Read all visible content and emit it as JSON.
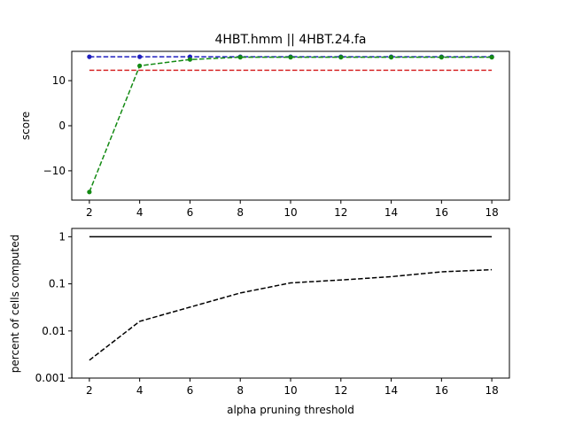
{
  "chart_data": [
    {
      "type": "line",
      "title": "4HBT.hmm || 4HBT.24.fa",
      "xlabel": "",
      "ylabel": "score",
      "x": [
        2,
        4,
        6,
        8,
        10,
        12,
        14,
        16,
        18
      ],
      "xticks": [
        "2",
        "4",
        "6",
        "8",
        "10",
        "12",
        "14",
        "16",
        "18"
      ],
      "xlim": [
        1.3,
        18.7
      ],
      "ylim": [
        -16.5,
        16.5
      ],
      "yticks": [
        {
          "value": -10,
          "label": "−10"
        },
        {
          "value": 0,
          "label": "0"
        },
        {
          "value": 10,
          "label": "10"
        }
      ],
      "grid": false,
      "series": [
        {
          "color": "#d62728",
          "dash": "dashed",
          "marker": "none",
          "values": [
            12.3,
            12.3,
            12.3,
            12.3,
            12.3,
            12.3,
            12.3,
            12.3,
            12.3
          ]
        },
        {
          "color": "#1f1fbf",
          "dash": "dashed",
          "marker": "dot",
          "values": [
            15.3,
            15.3,
            15.3,
            15.3,
            15.3,
            15.3,
            15.3,
            15.3,
            15.3
          ]
        },
        {
          "color": "#138a13",
          "dash": "dashed",
          "marker": "dot",
          "values": [
            -14.7,
            13.3,
            14.7,
            15.2,
            15.2,
            15.2,
            15.2,
            15.2,
            15.2
          ]
        }
      ]
    },
    {
      "type": "line",
      "title": "",
      "xlabel": "alpha pruning threshold",
      "ylabel": "percent of cells computed",
      "x": [
        2,
        4,
        6,
        8,
        10,
        12,
        14,
        16,
        18
      ],
      "xticks": [
        "2",
        "4",
        "6",
        "8",
        "10",
        "12",
        "14",
        "16",
        "18"
      ],
      "xlim": [
        1.3,
        18.7
      ],
      "yscale": "log",
      "ylim": [
        0.001,
        1.5
      ],
      "yticks": [
        {
          "value": 0.001,
          "label": "0.001"
        },
        {
          "value": 0.01,
          "label": "0.01"
        },
        {
          "value": 0.1,
          "label": "0.1"
        },
        {
          "value": 1,
          "label": "1"
        }
      ],
      "grid": false,
      "series": [
        {
          "color": "#000000",
          "dash": "solid",
          "marker": "none",
          "values": [
            1,
            1,
            1,
            1,
            1,
            1,
            1,
            1,
            1
          ]
        },
        {
          "color": "#000000",
          "dash": "dashed",
          "marker": "none",
          "values": [
            0.0024,
            0.016,
            0.032,
            0.064,
            0.105,
            0.121,
            0.142,
            0.18,
            0.2
          ]
        }
      ]
    }
  ]
}
